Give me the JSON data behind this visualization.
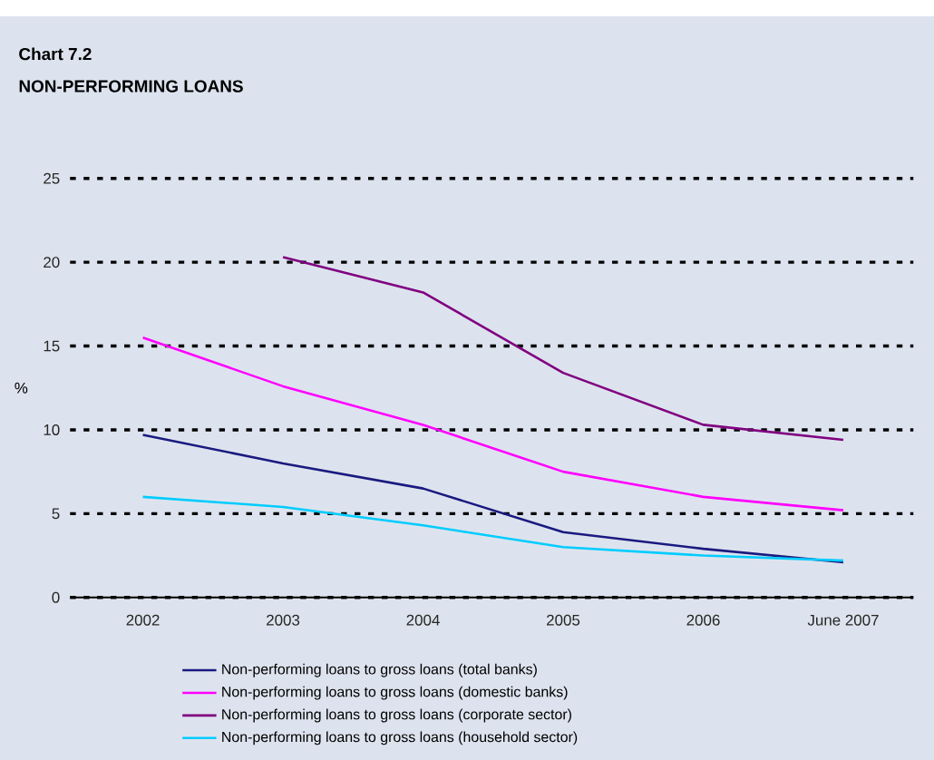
{
  "chart_data": {
    "type": "line",
    "title": "Chart 7.2",
    "subtitle": "NON-PERFORMING LOANS",
    "ylabel": "%",
    "categories": [
      "2002",
      "2003",
      "2004",
      "2005",
      "2006",
      "June 2007"
    ],
    "series": [
      {
        "name": "Non-performing loans to gross loans (total banks)",
        "color": "#1a1a80",
        "values": [
          9.7,
          8.0,
          6.5,
          3.9,
          2.9,
          2.1
        ]
      },
      {
        "name": "Non-performing loans to gross loans (domestic banks)",
        "color": "#ff00ff",
        "values": [
          15.5,
          12.6,
          10.3,
          7.5,
          6.0,
          5.2
        ]
      },
      {
        "name": "Non-performing loans to gross loans (corporate sector)",
        "color": "#800080",
        "values": [
          null,
          20.3,
          18.2,
          13.4,
          10.3,
          9.4
        ]
      },
      {
        "name": "Non-performing loans to gross loans (household sector)",
        "color": "#00ccff",
        "values": [
          6.0,
          5.4,
          4.3,
          3.0,
          2.5,
          2.2
        ]
      }
    ],
    "ylim": [
      0,
      25
    ],
    "yticks": [
      0,
      5,
      10,
      15,
      20,
      25
    ],
    "grid": "y",
    "legend": "bottom"
  }
}
